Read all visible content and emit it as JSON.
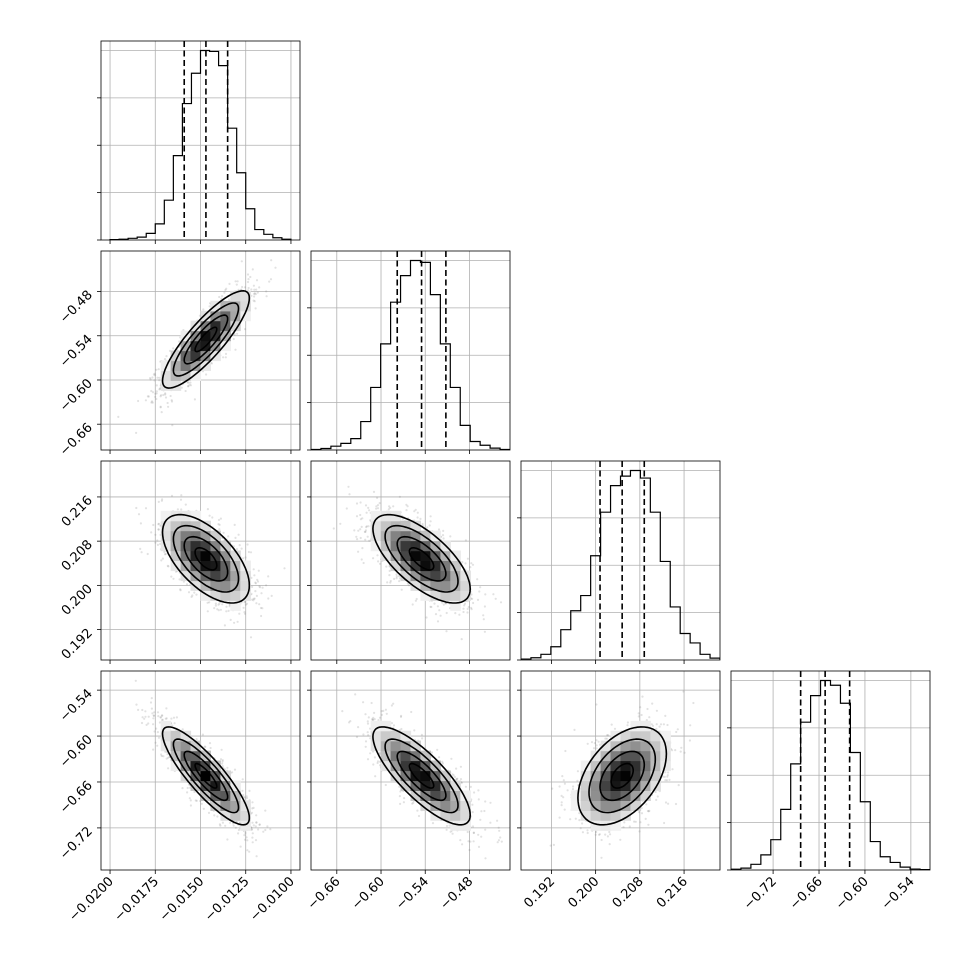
{
  "chart_data": {
    "type": "corner",
    "grid": true,
    "parameters": [
      {
        "range": [
          -0.0205,
          -0.0095
        ],
        "ticks": [
          -0.02,
          -0.0175,
          -0.015,
          -0.0125,
          -0.01
        ],
        "tick_labels": [
          "−0.0200",
          "−0.0175",
          "−0.0150",
          "−0.0125",
          "−0.0100"
        ],
        "mean": -0.0147,
        "std": 0.0012,
        "quantiles": [
          -0.0159,
          -0.0147,
          -0.0135
        ],
        "hist_bins": [
          -0.02,
          -0.0195,
          -0.019,
          -0.0185,
          -0.018,
          -0.0175,
          -0.017,
          -0.0165,
          -0.016,
          -0.0155,
          -0.015,
          -0.0145,
          -0.014,
          -0.0135,
          -0.013,
          -0.0125,
          -0.012,
          -0.0115,
          -0.011,
          -0.0105,
          -0.01
        ],
        "hist_counts": [
          2,
          4,
          9,
          15,
          35,
          85,
          210,
          445,
          720,
          880,
          1000,
          995,
          920,
          590,
          355,
          165,
          55,
          30,
          12,
          4
        ]
      },
      {
        "range": [
          -0.695,
          -0.425
        ],
        "ticks": [
          -0.66,
          -0.6,
          -0.54,
          -0.48
        ],
        "tick_labels": [
          "−0.66",
          "−0.60",
          "−0.54",
          "−0.48"
        ],
        "mean": -0.545,
        "std": 0.033,
        "quantiles": [
          -0.578,
          -0.545,
          -0.512
        ],
        "hist_bins": [
          -0.695,
          -0.6815,
          -0.668,
          -0.6545,
          -0.641,
          -0.6275,
          -0.614,
          -0.6005,
          -0.587,
          -0.5735,
          -0.56,
          -0.5465,
          -0.533,
          -0.5195,
          -0.506,
          -0.4925,
          -0.479,
          -0.4655,
          -0.452,
          -0.4385,
          -0.425
        ],
        "hist_counts": [
          3,
          8,
          20,
          35,
          60,
          150,
          330,
          560,
          780,
          920,
          1000,
          990,
          820,
          560,
          330,
          130,
          45,
          25,
          10,
          3
        ]
      },
      {
        "range": [
          0.1865,
          0.2225
        ],
        "ticks": [
          0.192,
          0.2,
          0.208,
          0.216
        ],
        "tick_labels": [
          "0.192",
          "0.200",
          "0.208",
          "0.216"
        ],
        "mean": 0.2048,
        "std": 0.004,
        "quantiles": [
          0.2008,
          0.2048,
          0.2088
        ],
        "hist_bins": [
          0.1865,
          0.1883,
          0.1901,
          0.1919,
          0.1937,
          0.1955,
          0.1973,
          0.1991,
          0.2009,
          0.2027,
          0.2045,
          0.2063,
          0.2081,
          0.2099,
          0.2117,
          0.2135,
          0.2153,
          0.2171,
          0.2189,
          0.2207,
          0.2225
        ],
        "hist_counts": [
          5,
          12,
          30,
          70,
          160,
          260,
          340,
          550,
          780,
          920,
          970,
          1000,
          960,
          780,
          520,
          280,
          140,
          90,
          30,
          10
        ]
      },
      {
        "range": [
          -0.775,
          -0.515
        ],
        "ticks": [
          -0.72,
          -0.66,
          -0.6,
          -0.54
        ],
        "tick_labels": [
          "−0.72",
          "−0.66",
          "−0.60",
          "−0.54"
        ],
        "mean": -0.652,
        "std": 0.032,
        "quantiles": [
          -0.684,
          -0.652,
          -0.62
        ],
        "hist_bins": [
          -0.775,
          -0.762,
          -0.749,
          -0.736,
          -0.723,
          -0.71,
          -0.697,
          -0.684,
          -0.671,
          -0.658,
          -0.645,
          -0.632,
          -0.619,
          -0.606,
          -0.593,
          -0.58,
          -0.567,
          -0.554,
          -0.541,
          -0.528,
          -0.515
        ],
        "hist_counts": [
          4,
          10,
          30,
          80,
          160,
          320,
          560,
          780,
          920,
          1000,
          975,
          880,
          620,
          360,
          150,
          70,
          40,
          15,
          5,
          2
        ]
      }
    ],
    "correlations": [
      {
        "row": 1,
        "col": 0,
        "rho": 0.85
      },
      {
        "row": 2,
        "col": 0,
        "rho": -0.6
      },
      {
        "row": 2,
        "col": 1,
        "rho": -0.68
      },
      {
        "row": 3,
        "col": 0,
        "rho": -0.86
      },
      {
        "row": 3,
        "col": 1,
        "rho": -0.8
      },
      {
        "row": 3,
        "col": 2,
        "rho": 0.45
      }
    ]
  }
}
